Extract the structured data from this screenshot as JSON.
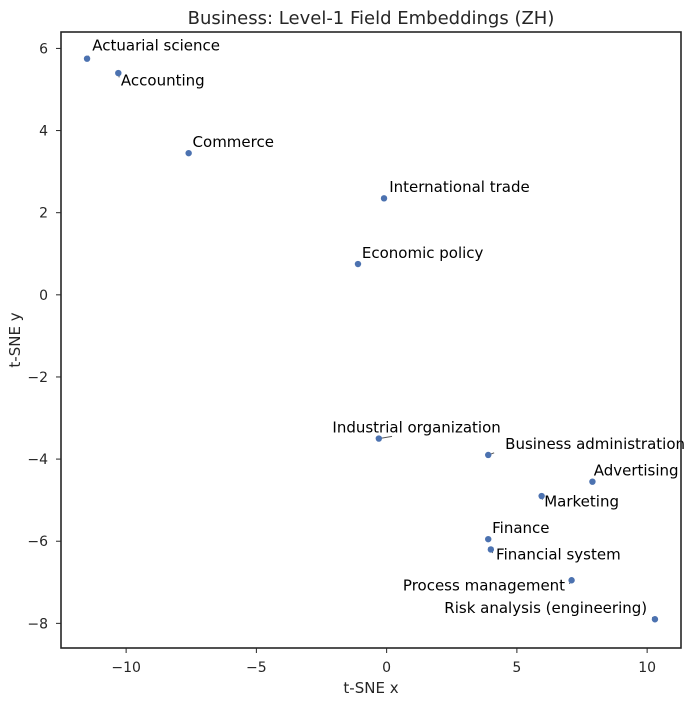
{
  "chart_data": {
    "type": "scatter",
    "title": "Business: Level-1 Field Embeddings (ZH)",
    "xlabel": "t-SNE x",
    "ylabel": "t-SNE y",
    "xlim": [
      -12.5,
      11.3
    ],
    "ylim": [
      -8.6,
      6.4
    ],
    "xticks": [
      -10,
      -5,
      0,
      5,
      10
    ],
    "yticks": [
      -8,
      -6,
      -4,
      -2,
      0,
      2,
      4,
      6
    ],
    "xtick_labels": [
      "−10",
      "−5",
      "0",
      "5",
      "10"
    ],
    "ytick_labels": [
      "−8",
      "−6",
      "−4",
      "−2",
      "0",
      "2",
      "4",
      "6"
    ],
    "grid": false,
    "marker_color": "#4c72b0",
    "points": [
      {
        "label": "Actuarial science",
        "x": -11.5,
        "y": 5.75,
        "label_x": -11.3,
        "label_y": 5.95,
        "anchor": "start"
      },
      {
        "label": "Accounting",
        "x": -10.3,
        "y": 5.4,
        "label_x": -10.2,
        "label_y": 5.1,
        "anchor": "start"
      },
      {
        "label": "Commerce",
        "x": -7.6,
        "y": 3.45,
        "label_x": -7.45,
        "label_y": 3.6,
        "anchor": "start"
      },
      {
        "label": "International trade",
        "x": -0.1,
        "y": 2.35,
        "label_x": 0.1,
        "label_y": 2.5,
        "anchor": "start"
      },
      {
        "label": "Economic policy",
        "x": -1.1,
        "y": 0.75,
        "label_x": -0.95,
        "label_y": 0.9,
        "anchor": "start"
      },
      {
        "label": "Industrial organization",
        "x": -0.3,
        "y": -3.5,
        "label_x": 1.15,
        "label_y": -3.35,
        "anchor": "middle"
      },
      {
        "label": "Business administration",
        "x": 3.9,
        "y": -3.9,
        "label_x": 4.55,
        "label_y": -3.75,
        "anchor": "start"
      },
      {
        "label": "Advertising",
        "x": 7.9,
        "y": -4.55,
        "label_x": 7.95,
        "label_y": -4.4,
        "anchor": "start"
      },
      {
        "label": "Marketing",
        "x": 5.95,
        "y": -4.9,
        "label_x": 6.05,
        "label_y": -5.15,
        "anchor": "start"
      },
      {
        "label": "Finance",
        "x": 3.9,
        "y": -5.95,
        "label_x": 4.05,
        "label_y": -5.8,
        "anchor": "start"
      },
      {
        "label": "Financial system",
        "x": 4.0,
        "y": -6.2,
        "label_x": 4.2,
        "label_y": -6.45,
        "anchor": "start"
      },
      {
        "label": "Process management",
        "x": 7.1,
        "y": -6.95,
        "label_x": 6.85,
        "label_y": -7.2,
        "anchor": "end"
      },
      {
        "label": "Risk analysis (engineering)",
        "x": 10.3,
        "y": -7.9,
        "label_x": 10.0,
        "label_y": -7.75,
        "anchor": "end"
      }
    ]
  }
}
